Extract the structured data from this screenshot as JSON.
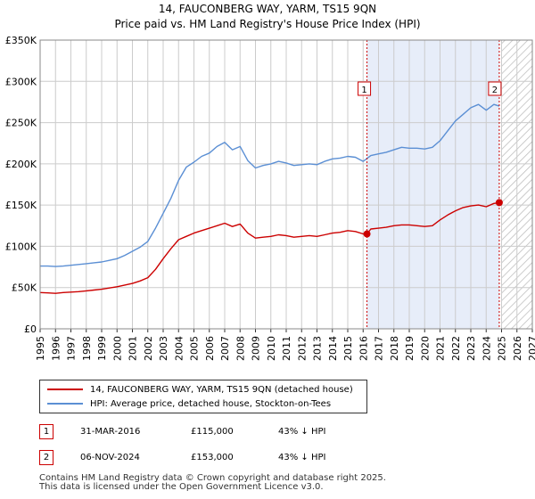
{
  "chart_data": {
    "type": "line",
    "title": "14, FAUCONBERG WAY, YARM, TS15 9QN",
    "subtitle": "Price paid vs. HM Land Registry's House Price Index (HPI)",
    "x_range": [
      1995,
      2027
    ],
    "ylim": [
      0,
      350000
    ],
    "y_ticks": [
      0,
      50000,
      100000,
      150000,
      200000,
      250000,
      300000,
      350000
    ],
    "y_tick_labels": [
      "£0",
      "£50K",
      "£100K",
      "£150K",
      "£200K",
      "£250K",
      "£300K",
      "£350K"
    ],
    "x_ticks": [
      1995,
      1996,
      1997,
      1998,
      1999,
      2000,
      2001,
      2002,
      2003,
      2004,
      2005,
      2006,
      2007,
      2008,
      2009,
      2010,
      2011,
      2012,
      2013,
      2014,
      2015,
      2016,
      2017,
      2018,
      2019,
      2020,
      2021,
      2022,
      2023,
      2024,
      2025,
      2026,
      2027
    ],
    "grid": true,
    "shaded_period": [
      2016.25,
      2024.85
    ],
    "hatched_future_from": 2025.0,
    "series": [
      {
        "name": "14, FAUCONBERG WAY, YARM, TS15 9QN (detached house)",
        "color": "#cc0000",
        "x": [
          1995.0,
          1995.5,
          1996.0,
          1996.5,
          1997.0,
          1997.5,
          1998.0,
          1998.5,
          1999.0,
          1999.5,
          2000.0,
          2000.5,
          2001.0,
          2001.5,
          2002.0,
          2002.5,
          2003.0,
          2003.5,
          2004.0,
          2004.5,
          2005.0,
          2005.5,
          2006.0,
          2006.5,
          2007.0,
          2007.5,
          2008.0,
          2008.5,
          2009.0,
          2009.5,
          2010.0,
          2010.5,
          2011.0,
          2011.5,
          2012.0,
          2012.5,
          2013.0,
          2013.5,
          2014.0,
          2014.5,
          2015.0,
          2015.5,
          2016.0,
          2016.25,
          2016.5,
          2017.0,
          2017.5,
          2018.0,
          2018.5,
          2019.0,
          2019.5,
          2020.0,
          2020.5,
          2021.0,
          2021.5,
          2022.0,
          2022.5,
          2023.0,
          2023.5,
          2024.0,
          2024.5,
          2024.85
        ],
        "y": [
          44000,
          43500,
          43000,
          44000,
          44500,
          45000,
          46000,
          47000,
          48000,
          49500,
          51000,
          53000,
          55000,
          58000,
          62000,
          72000,
          85000,
          97000,
          108000,
          112000,
          116000,
          119000,
          122000,
          125000,
          128000,
          124000,
          127000,
          116000,
          110000,
          111000,
          112000,
          114000,
          113000,
          111000,
          112000,
          113000,
          112000,
          114000,
          116000,
          117000,
          119000,
          118000,
          115000,
          115000,
          121000,
          122000,
          123000,
          125000,
          126000,
          126000,
          125000,
          124000,
          125000,
          132000,
          138000,
          143000,
          147000,
          149000,
          150000,
          148000,
          152000,
          153000
        ]
      },
      {
        "name": "HPI: Average price, detached house, Stockton-on-Tees",
        "color": "#5b8fd4",
        "x": [
          1995.0,
          1995.5,
          1996.0,
          1996.5,
          1997.0,
          1997.5,
          1998.0,
          1998.5,
          1999.0,
          1999.5,
          2000.0,
          2000.5,
          2001.0,
          2001.5,
          2002.0,
          2002.5,
          2003.0,
          2003.5,
          2004.0,
          2004.5,
          2005.0,
          2005.5,
          2006.0,
          2006.5,
          2007.0,
          2007.5,
          2008.0,
          2008.5,
          2009.0,
          2009.5,
          2010.0,
          2010.5,
          2011.0,
          2011.5,
          2012.0,
          2012.5,
          2013.0,
          2013.5,
          2014.0,
          2014.5,
          2015.0,
          2015.5,
          2016.0,
          2016.5,
          2017.0,
          2017.5,
          2018.0,
          2018.5,
          2019.0,
          2019.5,
          2020.0,
          2020.5,
          2021.0,
          2021.5,
          2022.0,
          2022.5,
          2023.0,
          2023.5,
          2024.0,
          2024.5,
          2024.85
        ],
        "y": [
          76000,
          76000,
          75500,
          76000,
          77000,
          78000,
          79000,
          80000,
          81000,
          83000,
          85000,
          89000,
          94000,
          99000,
          106000,
          122000,
          140000,
          158000,
          180000,
          196000,
          202000,
          209000,
          213000,
          221000,
          226000,
          217000,
          221000,
          204000,
          195000,
          198000,
          200000,
          203000,
          201000,
          198000,
          199000,
          200000,
          199000,
          203000,
          206000,
          207000,
          209000,
          208000,
          203000,
          210000,
          212000,
          214000,
          217000,
          220000,
          219000,
          219000,
          218000,
          220000,
          228000,
          240000,
          252000,
          260000,
          268000,
          272000,
          265000,
          272000,
          270000
        ]
      }
    ],
    "annotations": [
      {
        "label": "1",
        "x": 2016.25,
        "y": 115000
      },
      {
        "label": "2",
        "x": 2024.85,
        "y": 153000
      }
    ]
  },
  "legend": {
    "red_label": "14, FAUCONBERG WAY, YARM, TS15 9QN (detached house)",
    "blue_label": "HPI: Average price, detached house, Stockton-on-Tees"
  },
  "transactions": [
    {
      "num": "1",
      "date": "31-MAR-2016",
      "price": "£115,000",
      "hpi": "43% ↓ HPI"
    },
    {
      "num": "2",
      "date": "06-NOV-2024",
      "price": "£153,000",
      "hpi": "43% ↓ HPI"
    }
  ],
  "footer": {
    "line1": "Contains HM Land Registry data © Crown copyright and database right 2025.",
    "line2": "This data is licensed under the Open Government Licence v3.0."
  }
}
